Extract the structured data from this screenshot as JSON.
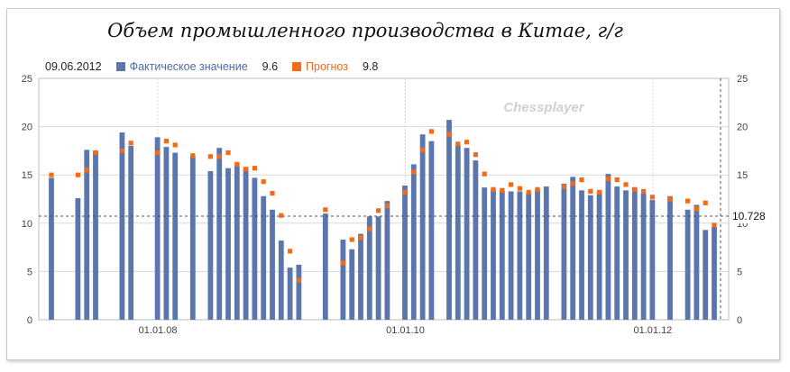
{
  "title": "Объем промышленного производства в Китае, г/г",
  "legend": {
    "date": "09.06.2012",
    "actual_label": "Фактическое значение",
    "actual_value": "9.6",
    "forecast_label": "Прогноз",
    "forecast_value": "9.8"
  },
  "watermark": "Chessplayer",
  "current_value_label": "10.728",
  "colors": {
    "actual": "#5b76ac",
    "forecast": "#f26a1a",
    "grid": "#d8d8d8"
  },
  "chart_data": {
    "type": "bar",
    "ylim": [
      0,
      25
    ],
    "yticks": [
      0,
      5,
      10,
      15,
      20,
      25
    ],
    "x_tick_labels": [
      "01.01.08",
      "01.01.10",
      "01.01.12"
    ],
    "reference_line": 10.728,
    "series": [
      {
        "name": "Фактическое значение",
        "values": [
          14.7,
          null,
          null,
          12.6,
          17.6,
          17.5,
          null,
          null,
          19.4,
          18.0,
          null,
          null,
          18.9,
          17.9,
          17.3,
          null,
          17.0,
          null,
          15.4,
          17.8,
          15.7,
          16.0,
          15.7,
          14.7,
          12.8,
          11.4,
          8.2,
          5.4,
          5.7,
          null,
          null,
          11.0,
          null,
          8.3,
          7.3,
          8.9,
          10.7,
          10.7,
          12.3,
          null,
          13.9,
          16.1,
          19.2,
          18.5,
          null,
          20.7,
          18.1,
          17.8,
          16.5,
          13.7,
          13.5,
          13.4,
          13.3,
          13.3,
          13.1,
          13.5,
          13.8,
          null,
          14.1,
          14.8,
          13.4,
          12.9,
          13.2,
          15.1,
          13.8,
          13.4,
          13.7,
          13.1,
          12.4,
          null,
          12.8,
          null,
          11.4,
          11.9,
          9.3,
          9.6
        ],
        "color": "#5b76ac"
      },
      {
        "name": "Прогноз",
        "values": [
          15.0,
          null,
          null,
          15.0,
          15.5,
          17.3,
          null,
          null,
          17.5,
          18.3,
          null,
          null,
          17.3,
          18.5,
          18.1,
          null,
          17.0,
          null,
          16.9,
          16.9,
          17.3,
          16.1,
          15.6,
          15.7,
          14.3,
          13.1,
          10.8,
          7.1,
          4.1,
          null,
          null,
          11.4,
          null,
          5.9,
          8.3,
          8.5,
          9.4,
          11.3,
          11.8,
          null,
          13.2,
          15.3,
          17.6,
          19.5,
          null,
          19.2,
          18.2,
          18.4,
          17.1,
          15.1,
          13.5,
          13.4,
          14.0,
          13.6,
          13.2,
          13.5,
          null,
          null,
          13.8,
          14.1,
          14.5,
          13.3,
          13.2,
          14.6,
          14.5,
          14.0,
          13.5,
          13.3,
          12.7,
          null,
          12.5,
          null,
          12.3,
          11.5,
          12.1,
          9.8
        ],
        "color": "#f26a1a"
      }
    ]
  }
}
